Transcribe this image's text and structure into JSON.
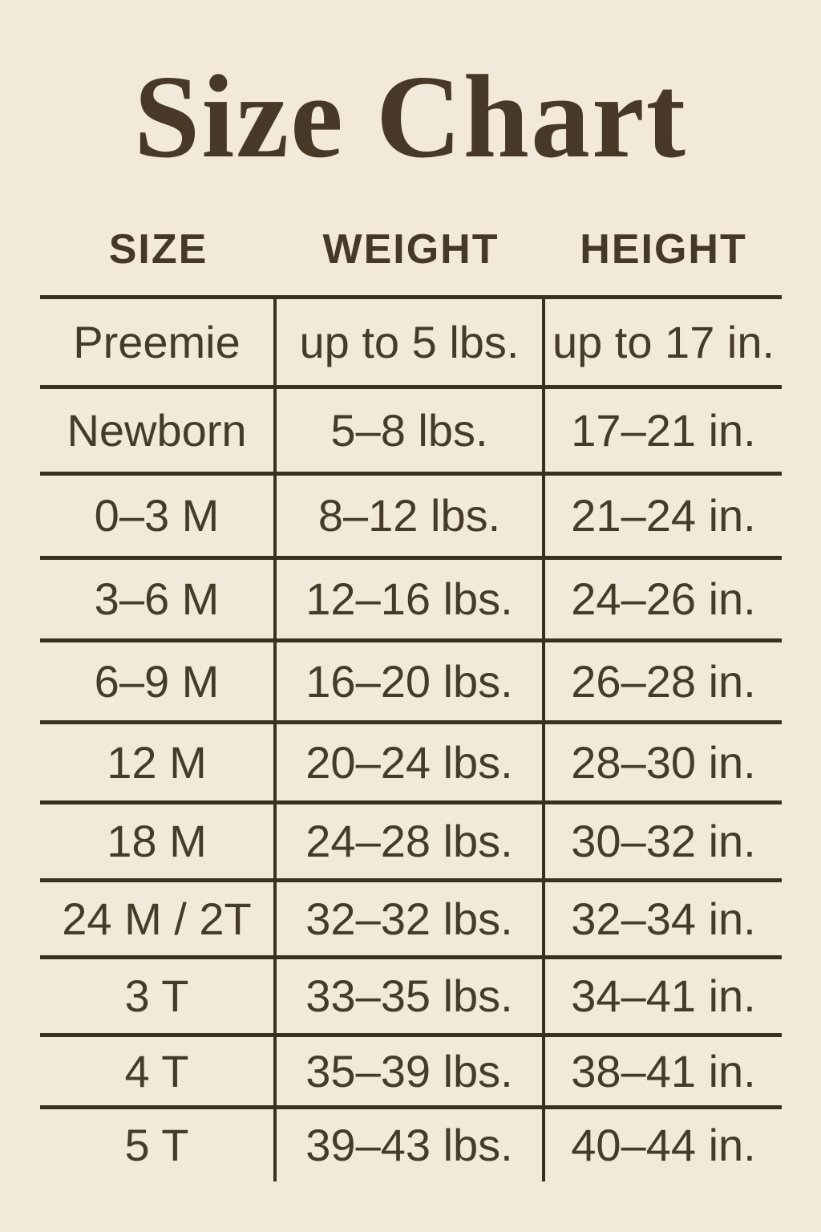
{
  "title": "Size Chart",
  "colors": {
    "background": "#f2e9da",
    "text": "#463a29",
    "line": "#3a3022"
  },
  "chart_data": {
    "type": "table",
    "title": "Size Chart",
    "columns": [
      "SIZE",
      "WEIGHT",
      "HEIGHT"
    ],
    "rows": [
      [
        "Preemie",
        "up to 5 lbs.",
        "up to 17 in."
      ],
      [
        "Newborn",
        "5–8 lbs.",
        "17–21 in."
      ],
      [
        "0–3 M",
        "8–12 lbs.",
        "21–24 in."
      ],
      [
        "3–6 M",
        "12–16 lbs.",
        "24–26 in."
      ],
      [
        "6–9 M",
        "16–20 lbs.",
        "26–28 in."
      ],
      [
        "12 M",
        "20–24 lbs.",
        "28–30 in."
      ],
      [
        "18 M",
        "24–28 lbs.",
        "30–32 in."
      ],
      [
        "24 M / 2T",
        "32–32 lbs.",
        "32–34 in."
      ],
      [
        "3 T",
        "33–35 lbs.",
        "34–41 in."
      ],
      [
        "4 T",
        "35–39 lbs.",
        "38–41 in."
      ],
      [
        "5 T",
        "39–43 lbs.",
        "40–44 in."
      ]
    ]
  }
}
